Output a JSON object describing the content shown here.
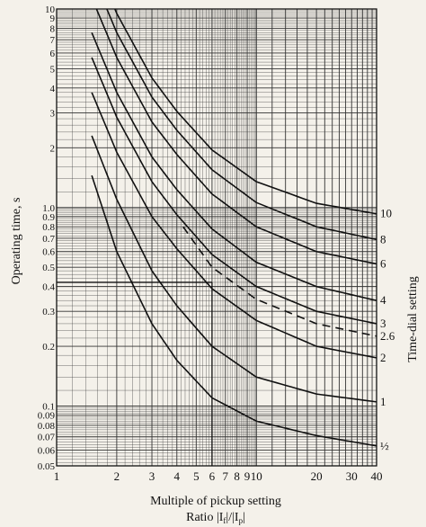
{
  "chart_data": {
    "type": "line",
    "title": "",
    "xlabel_line1": "Multiple of pickup setting",
    "xlabel_line2": "Ratio |I",
    "xlabel_line2_sub1": "f",
    "xlabel_line2_mid": "|/|I",
    "xlabel_line2_sub2": "p",
    "xlabel_line2_end": "|",
    "ylabel": "Operating time, s",
    "series_axis_label": "Time-dial setting",
    "x_scale": "log",
    "y_scale": "log",
    "xlim": [
      1,
      40
    ],
    "ylim": [
      0.05,
      10
    ],
    "grid": true,
    "x_ticks": [
      {
        "v": 1,
        "label": "1"
      },
      {
        "v": 2,
        "label": "2"
      },
      {
        "v": 3,
        "label": "3"
      },
      {
        "v": 4,
        "label": "4"
      },
      {
        "v": 5,
        "label": "5"
      },
      {
        "v": 6,
        "label": "6"
      },
      {
        "v": 7,
        "label": "7"
      },
      {
        "v": 8,
        "label": "8"
      },
      {
        "v": 9,
        "label": "9"
      },
      {
        "v": 10,
        "label": "10"
      },
      {
        "v": 20,
        "label": "20"
      },
      {
        "v": 30,
        "label": "30"
      },
      {
        "v": 40,
        "label": "40"
      }
    ],
    "y_ticks": [
      {
        "v": 0.05,
        "label": "0.05"
      },
      {
        "v": 0.06,
        "label": "0.06"
      },
      {
        "v": 0.07,
        "label": "0.07"
      },
      {
        "v": 0.08,
        "label": "0.08"
      },
      {
        "v": 0.09,
        "label": "0.09"
      },
      {
        "v": 0.1,
        "label": "0.1"
      },
      {
        "v": 0.2,
        "label": "0.2"
      },
      {
        "v": 0.3,
        "label": "0.3"
      },
      {
        "v": 0.4,
        "label": "0.4"
      },
      {
        "v": 0.5,
        "label": "0.5"
      },
      {
        "v": 0.6,
        "label": "0.6"
      },
      {
        "v": 0.7,
        "label": "0.7"
      },
      {
        "v": 0.8,
        "label": "0.8"
      },
      {
        "v": 0.9,
        "label": "0.9"
      },
      {
        "v": 1.0,
        "label": "1.0"
      },
      {
        "v": 2,
        "label": "2"
      },
      {
        "v": 3,
        "label": "3"
      },
      {
        "v": 4,
        "label": "4"
      },
      {
        "v": 5,
        "label": "5"
      },
      {
        "v": 6,
        "label": "6"
      },
      {
        "v": 7,
        "label": "7"
      },
      {
        "v": 8,
        "label": "8"
      },
      {
        "v": 9,
        "label": "9"
      },
      {
        "v": 10,
        "label": "10"
      }
    ],
    "series": [
      {
        "name": "10",
        "dashed": false,
        "x": [
          1.5,
          2,
          3,
          4,
          6,
          10,
          20,
          40
        ],
        "y": [
          19,
          9.5,
          4.5,
          3.05,
          1.95,
          1.35,
          1.05,
          0.93
        ]
      },
      {
        "name": "8",
        "dashed": false,
        "x": [
          1.5,
          2,
          3,
          4,
          6,
          10,
          20,
          40
        ],
        "y": [
          15.2,
          7.6,
          3.6,
          2.45,
          1.55,
          1.06,
          0.8,
          0.69
        ]
      },
      {
        "name": "6",
        "dashed": false,
        "x": [
          1.5,
          2,
          3,
          4,
          6,
          10,
          20,
          40
        ],
        "y": [
          11.4,
          5.7,
          2.7,
          1.85,
          1.17,
          0.8,
          0.6,
          0.52
        ]
      },
      {
        "name": "4",
        "dashed": false,
        "x": [
          1.5,
          2,
          3,
          4,
          6,
          10,
          20,
          40
        ],
        "y": [
          7.6,
          3.8,
          1.8,
          1.23,
          0.78,
          0.53,
          0.4,
          0.34
        ]
      },
      {
        "name": "3",
        "dashed": false,
        "x": [
          1.5,
          2,
          3,
          4,
          6,
          10,
          20,
          40
        ],
        "y": [
          5.7,
          2.85,
          1.35,
          0.92,
          0.58,
          0.4,
          0.3,
          0.26
        ]
      },
      {
        "name": "2.6",
        "dashed": true,
        "x": [
          4.3,
          6,
          10,
          20,
          40
        ],
        "y": [
          0.8,
          0.5,
          0.345,
          0.26,
          0.225
        ]
      },
      {
        "name": "2",
        "dashed": false,
        "x": [
          1.5,
          2,
          3,
          4,
          6,
          10,
          20,
          40
        ],
        "y": [
          3.8,
          1.9,
          0.9,
          0.62,
          0.39,
          0.27,
          0.2,
          0.175
        ]
      },
      {
        "name": "1",
        "dashed": false,
        "x": [
          1.5,
          2,
          3,
          4,
          6,
          10,
          20,
          40
        ],
        "y": [
          2.3,
          1.1,
          0.48,
          0.32,
          0.2,
          0.14,
          0.115,
          0.105
        ]
      },
      {
        "name": "½",
        "dashed": false,
        "x": [
          1.5,
          2,
          3,
          4,
          6,
          10,
          20,
          40
        ],
        "y": [
          1.45,
          0.6,
          0.26,
          0.17,
          0.11,
          0.084,
          0.071,
          0.063
        ]
      }
    ],
    "annotations": [
      {
        "type": "hline",
        "y": 0.42,
        "x_from": 1,
        "x_to": 6
      },
      {
        "type": "vline",
        "x": 6,
        "y_from": 0.05,
        "y_to": 0.42
      }
    ]
  }
}
